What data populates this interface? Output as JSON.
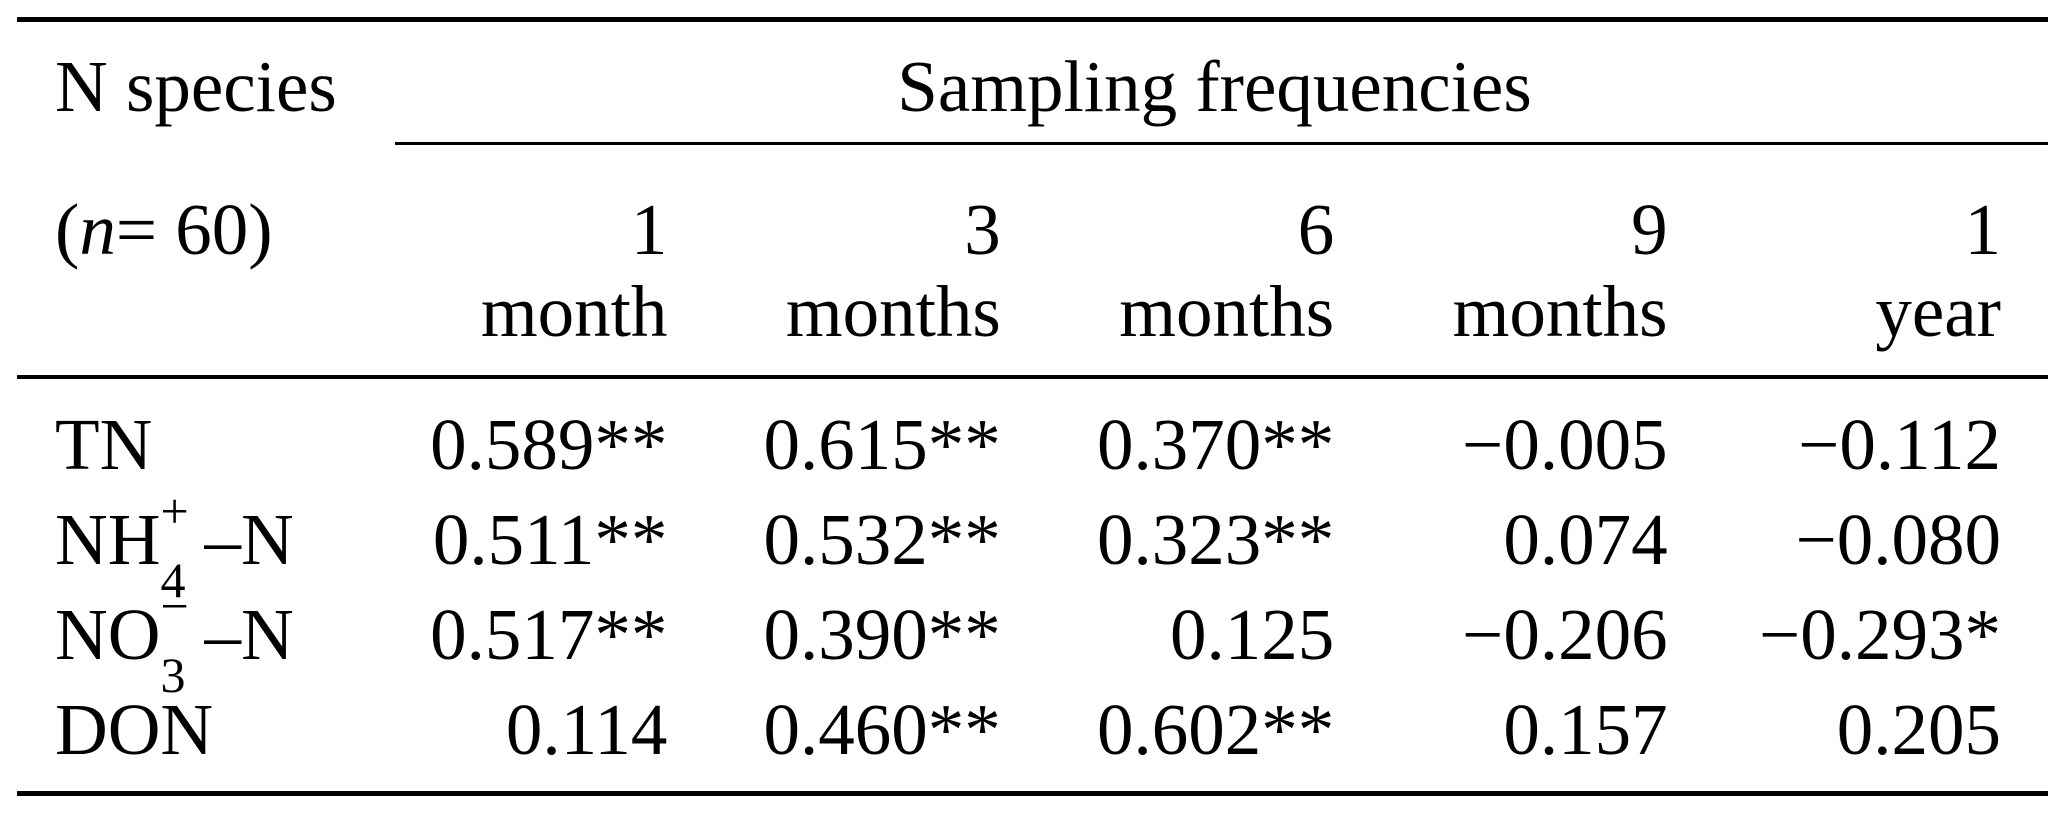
{
  "table": {
    "stub": {
      "line1": "N species",
      "line2": {
        "open": "(",
        "var": "n",
        "rest": " = 60)"
      }
    },
    "group_header": "Sampling frequencies",
    "columns": [
      {
        "num": "1",
        "unit": "month"
      },
      {
        "num": "3",
        "unit": "months"
      },
      {
        "num": "6",
        "unit": "months"
      },
      {
        "num": "9",
        "unit": "months"
      },
      {
        "num": "1",
        "unit": "year"
      }
    ],
    "rows": [
      {
        "species": {
          "base": "TN"
        },
        "values": [
          "0.589**",
          "0.615**",
          "0.370**",
          "−0.005",
          "−0.112"
        ]
      },
      {
        "species": {
          "base": "NH",
          "sup": "+",
          "sub": "4",
          "suffix": "–N"
        },
        "values": [
          "0.511**",
          "0.532**",
          "0.323**",
          "0.074",
          "−0.080"
        ]
      },
      {
        "species": {
          "base": "NO",
          "sup": "−",
          "sub": "3",
          "suffix": "–N"
        },
        "values": [
          "0.517**",
          "0.390**",
          "0.125",
          "−0.206",
          "−0.293*"
        ]
      },
      {
        "species": {
          "base": "DON"
        },
        "values": [
          "0.114",
          "0.460**",
          "0.602**",
          "0.157",
          "0.205"
        ]
      }
    ]
  },
  "colors": {
    "text": "#000000",
    "background": "#ffffff",
    "rule": "#000000"
  }
}
